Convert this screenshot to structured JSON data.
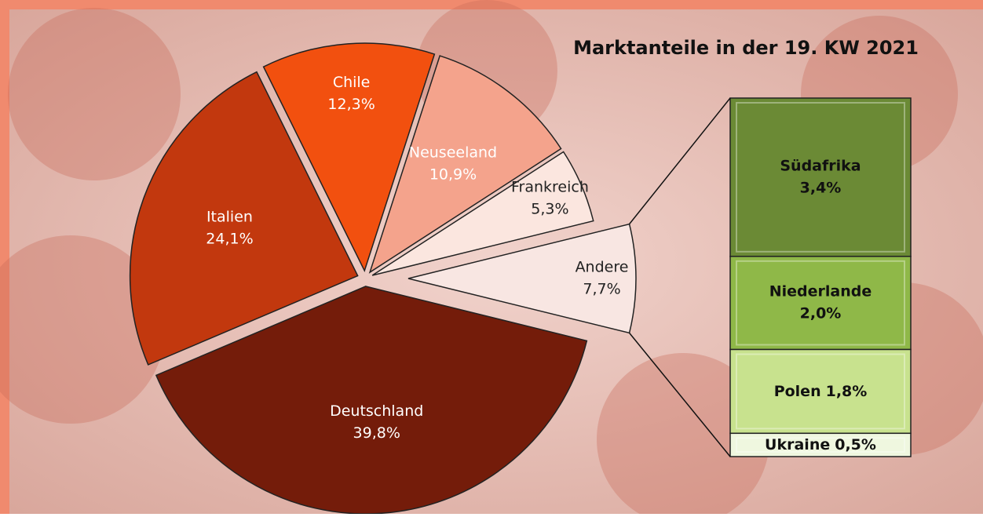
{
  "chart_data": {
    "type": "pie-of-bar",
    "title": "Marktanteile in der 19. KW 2021",
    "categories": [
      "Deutschland",
      "Italien",
      "Chile",
      "Neuseeland",
      "Frankreich",
      "Andere"
    ],
    "values": [
      39.8,
      24.1,
      12.3,
      10.9,
      5.3,
      7.7
    ],
    "value_labels": [
      "39,8%",
      "24,1%",
      "12,3%",
      "10,9%",
      "5,3%",
      "7,7%"
    ],
    "colors": [
      "#741c0a",
      "#c2380e",
      "#f2500f",
      "#f4a38c",
      "#fbe6df",
      "#f8e6e2"
    ],
    "bar": {
      "categories": [
        "Südafrika",
        "Niederlande",
        "Polen",
        "Ukraine"
      ],
      "values": [
        3.4,
        2.0,
        1.8,
        0.5
      ],
      "value_labels": [
        "3,4%",
        "2,0%",
        "1,8%",
        "0,5%"
      ],
      "colors": [
        "#6b8a35",
        "#8fb848",
        "#c8e28e",
        "#eff7df"
      ]
    }
  }
}
